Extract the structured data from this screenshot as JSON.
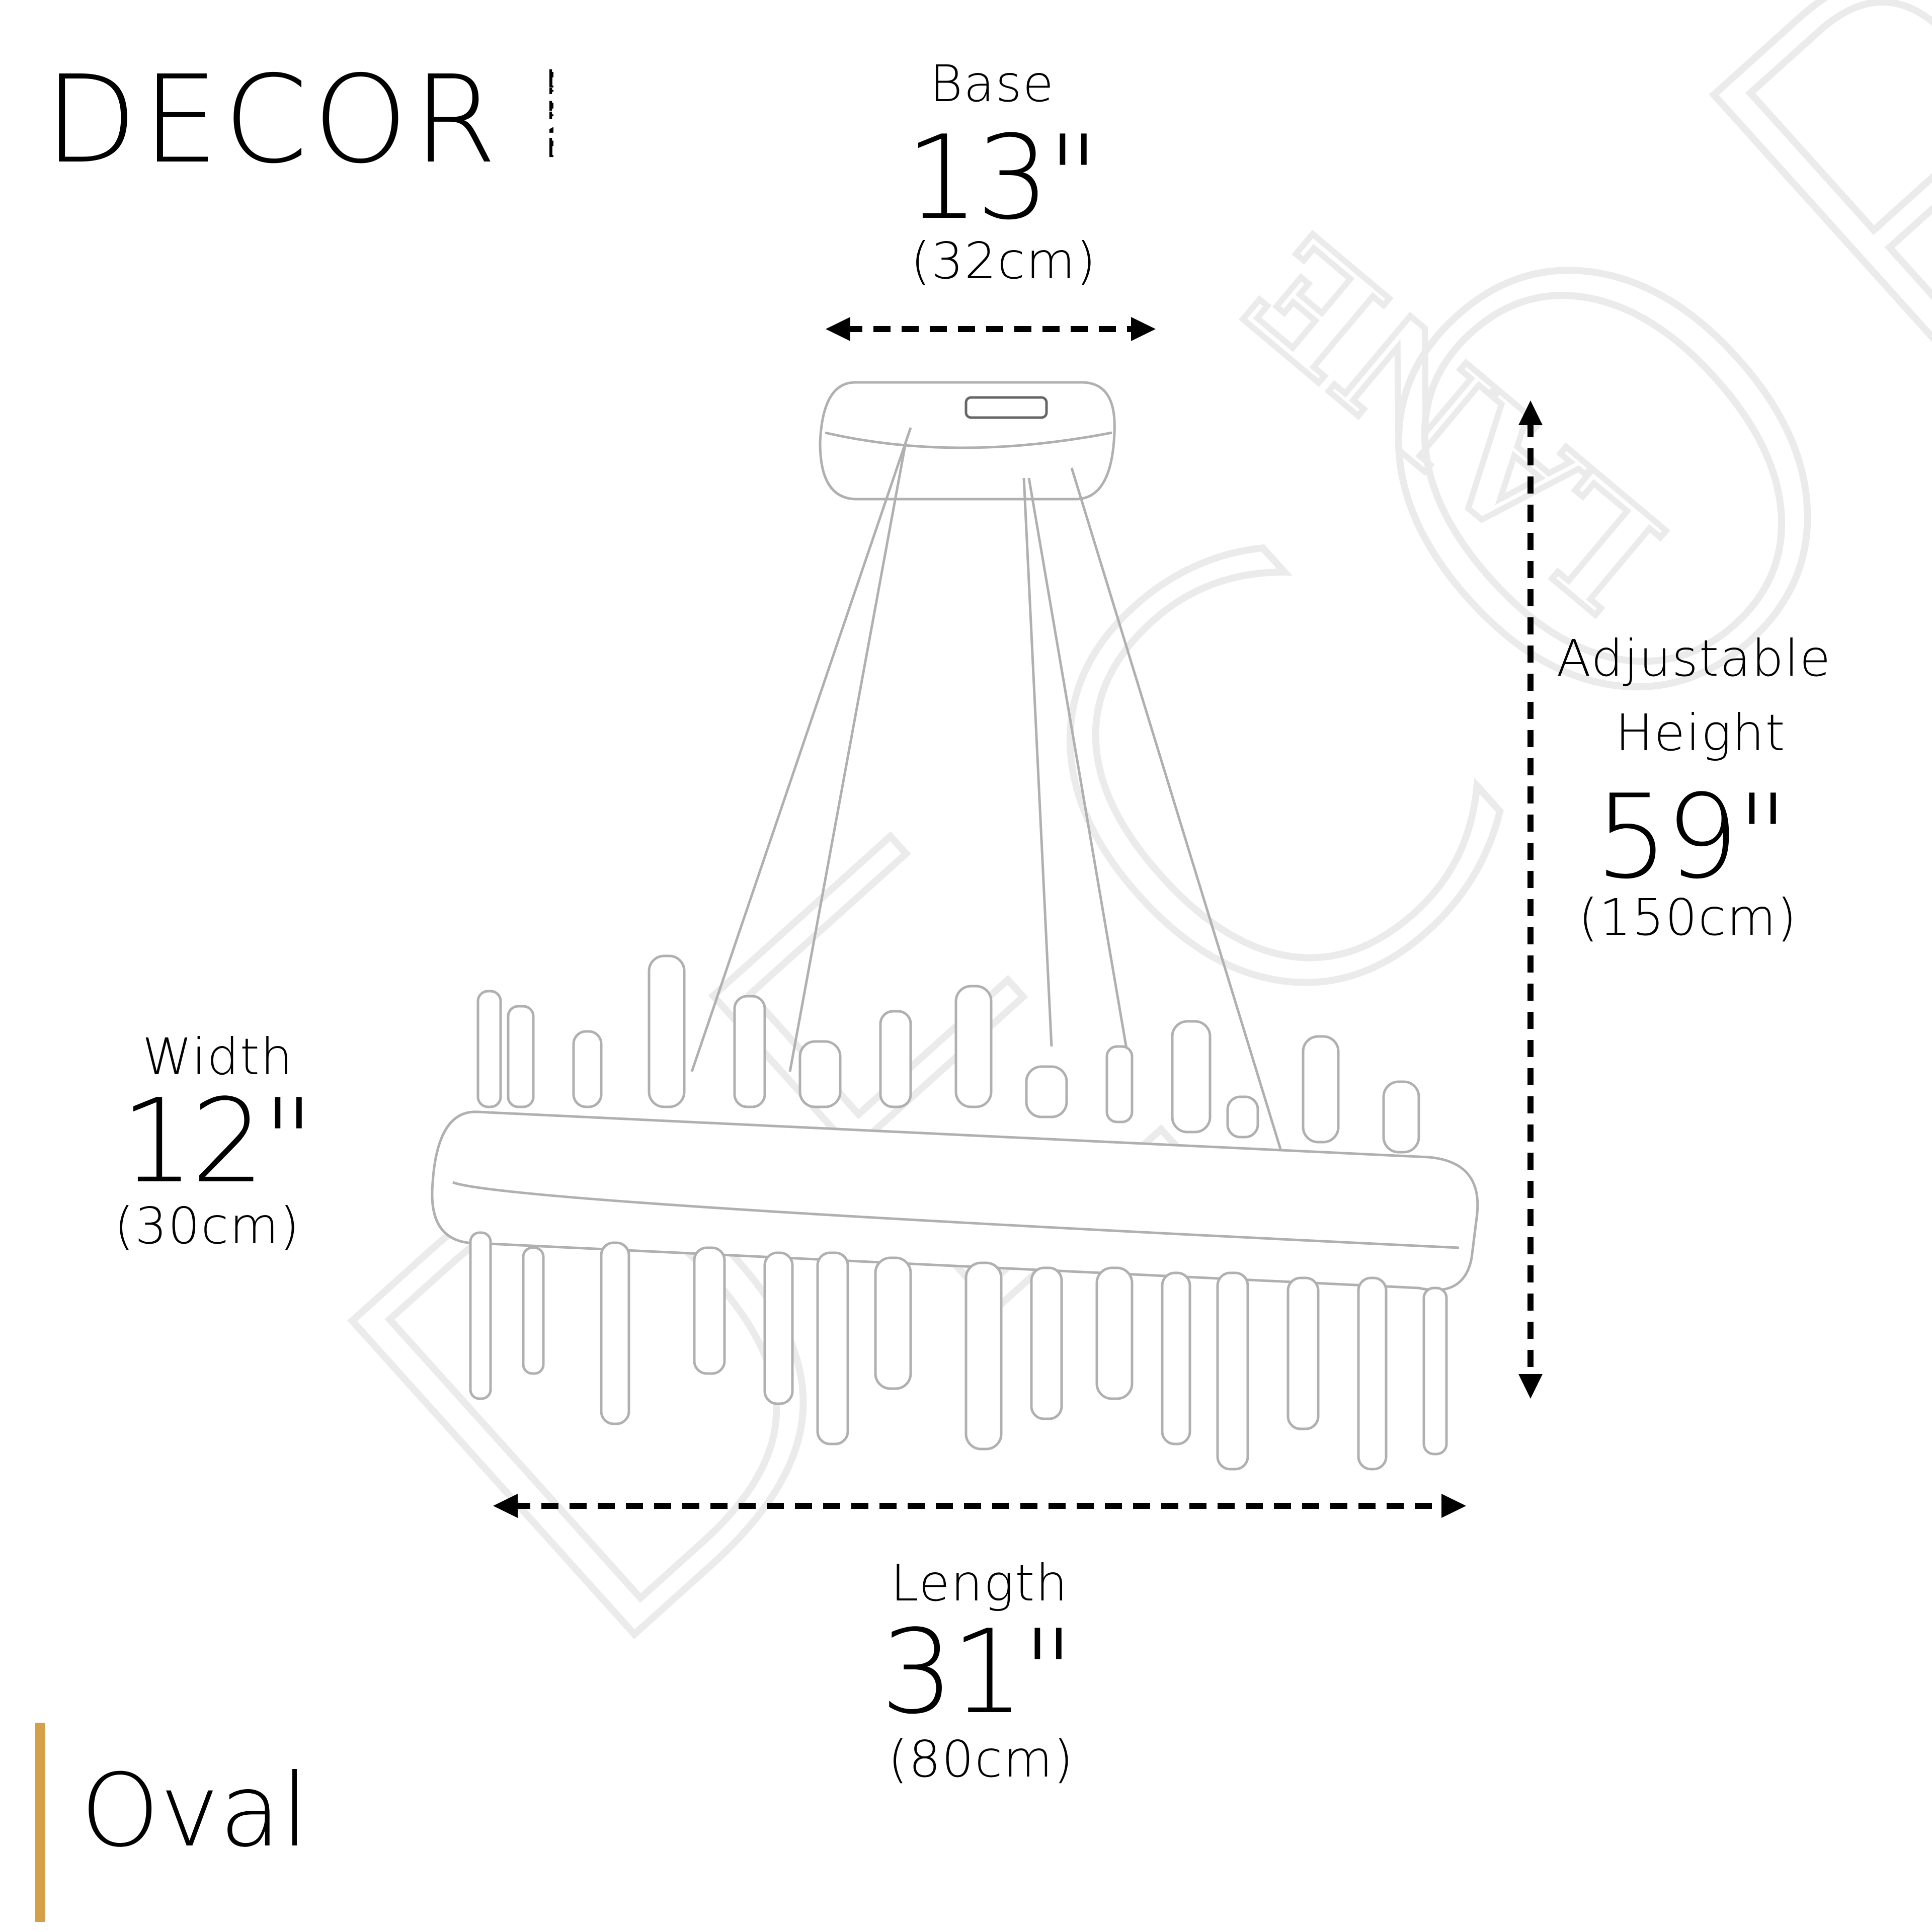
{
  "brand": {
    "logo_main": "DECOR",
    "logo_side": "LANE",
    "watermark": "DECOR LANE"
  },
  "dimensions": {
    "base": {
      "label": "Base",
      "inches": "13\"",
      "cm": "(32cm)"
    },
    "height": {
      "label_line1": "Adjustable",
      "label_line2": "Height",
      "inches": "59\"",
      "cm": "(150cm)"
    },
    "width": {
      "label": "Width",
      "inches": "12\"",
      "cm": "(30cm)"
    },
    "length": {
      "label": "Length",
      "inches": "31\"",
      "cm": "(80cm)"
    }
  },
  "shape": {
    "label": "Oval"
  },
  "colors": {
    "accent_gold": "#D4A04A",
    "text": "#000000",
    "sketch": "#b5b5b5",
    "watermark": "#ebebeb"
  }
}
